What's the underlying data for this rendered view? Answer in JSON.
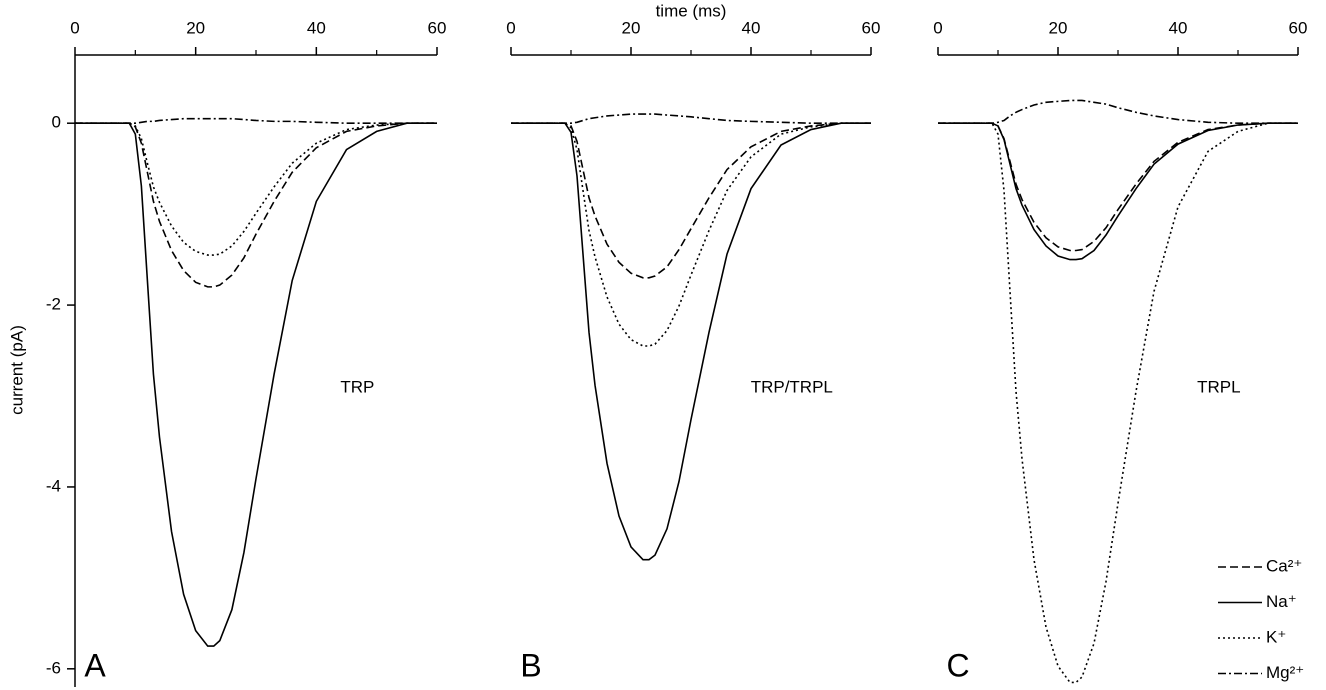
{
  "chart_data": [
    {
      "type": "line",
      "x_label": null,
      "y_label": "current (pA)",
      "annotation": "TRP",
      "panel_label": "A",
      "x": [
        0,
        9,
        10,
        11,
        12,
        13,
        14,
        16,
        18,
        20,
        22,
        23,
        24,
        26,
        28,
        30,
        33,
        36,
        40,
        45,
        50,
        55,
        60
      ],
      "xlim": [
        0,
        60
      ],
      "xticks": [
        0,
        20,
        40,
        60
      ],
      "xminor": [
        10,
        30,
        50
      ],
      "ylim": [
        -6.2,
        0.75
      ],
      "yticks": [
        0,
        -2,
        -4,
        -6
      ],
      "series": [
        {
          "color": "#000000",
          "dash": "dashed",
          "values": [
            0,
            0,
            -0.04,
            -0.22,
            -0.54,
            -0.86,
            -1.08,
            -1.4,
            -1.62,
            -1.75,
            -1.8,
            -1.8,
            -1.78,
            -1.67,
            -1.48,
            -1.22,
            -0.86,
            -0.54,
            -0.27,
            -0.09,
            -0.03,
            0,
            0
          ]
        },
        {
          "color": "#000000",
          "dash": "solid",
          "values": [
            0,
            0,
            -0.12,
            -0.69,
            -1.73,
            -2.76,
            -3.45,
            -4.49,
            -5.18,
            -5.58,
            -5.75,
            -5.75,
            -5.69,
            -5.35,
            -4.72,
            -3.91,
            -2.76,
            -1.73,
            -0.86,
            -0.29,
            -0.09,
            0,
            0
          ]
        },
        {
          "color": "#000000",
          "dash": "dotted",
          "values": [
            0,
            0,
            -0.03,
            -0.17,
            -0.44,
            -0.7,
            -0.87,
            -1.13,
            -1.31,
            -1.41,
            -1.45,
            -1.45,
            -1.44,
            -1.35,
            -1.19,
            -0.99,
            -0.7,
            -0.44,
            -0.22,
            -0.07,
            -0.02,
            0,
            0
          ]
        },
        {
          "color": "#000000",
          "dash": "dashdot",
          "values": [
            0,
            0,
            0,
            0.01,
            0.02,
            0.02,
            0.03,
            0.04,
            0.05,
            0.05,
            0.05,
            0.05,
            0.05,
            0.05,
            0.04,
            0.03,
            0.02,
            0.02,
            0.01,
            0,
            0,
            0,
            0
          ]
        }
      ]
    },
    {
      "type": "line",
      "x_label": "time (ms)",
      "annotation": "TRP/TRPL",
      "panel_label": "B",
      "x": [
        0,
        9,
        10,
        11,
        12,
        13,
        14,
        16,
        18,
        20,
        22,
        23,
        24,
        26,
        28,
        30,
        33,
        36,
        40,
        45,
        50,
        55,
        60
      ],
      "xlim": [
        0,
        60
      ],
      "xticks": [
        0,
        20,
        40,
        60
      ],
      "xminor": [
        10,
        30,
        50
      ],
      "ylim": [
        -6.2,
        0.75
      ],
      "series": [
        {
          "color": "#000000",
          "dash": "dashed",
          "values": [
            0,
            0,
            -0.03,
            -0.2,
            -0.51,
            -0.82,
            -1.02,
            -1.33,
            -1.53,
            -1.65,
            -1.7,
            -1.7,
            -1.68,
            -1.58,
            -1.39,
            -1.16,
            -0.82,
            -0.51,
            -0.26,
            -0.09,
            -0.03,
            0,
            0
          ]
        },
        {
          "color": "#000000",
          "dash": "solid",
          "values": [
            0,
            0,
            -0.1,
            -0.58,
            -1.44,
            -2.3,
            -2.88,
            -3.74,
            -4.32,
            -4.66,
            -4.8,
            -4.8,
            -4.75,
            -4.46,
            -3.94,
            -3.26,
            -2.3,
            -1.44,
            -0.72,
            -0.24,
            -0.07,
            0,
            0
          ]
        },
        {
          "color": "#000000",
          "dash": "dotted",
          "values": [
            0,
            0,
            -0.05,
            -0.29,
            -0.74,
            -1.18,
            -1.47,
            -1.91,
            -2.21,
            -2.38,
            -2.45,
            -2.45,
            -2.43,
            -2.28,
            -2.01,
            -1.67,
            -1.18,
            -0.74,
            -0.37,
            -0.12,
            -0.04,
            0,
            0
          ]
        },
        {
          "color": "#000000",
          "dash": "dashdot",
          "values": [
            0,
            0,
            0,
            0.01,
            0.03,
            0.05,
            0.06,
            0.08,
            0.09,
            0.1,
            0.1,
            0.1,
            0.1,
            0.09,
            0.08,
            0.07,
            0.05,
            0.03,
            0.02,
            0.01,
            0,
            0,
            0
          ]
        }
      ]
    },
    {
      "type": "line",
      "annotation": "TRPL",
      "panel_label": "C",
      "legend": "lower right",
      "x": [
        0,
        9,
        10,
        11,
        12,
        13,
        14,
        16,
        18,
        20,
        22,
        23,
        24,
        26,
        28,
        30,
        33,
        36,
        40,
        45,
        50,
        55,
        60
      ],
      "xlim": [
        0,
        60
      ],
      "xticks": [
        0,
        20,
        40,
        60
      ],
      "xminor": [
        10,
        30,
        50
      ],
      "ylim": [
        -6.2,
        0.75
      ],
      "series": [
        {
          "name": "Ca²⁺",
          "color": "#000000",
          "dash": "dashed",
          "values": [
            0,
            0,
            -0.03,
            -0.17,
            -0.42,
            -0.67,
            -0.84,
            -1.09,
            -1.26,
            -1.36,
            -1.4,
            -1.4,
            -1.39,
            -1.3,
            -1.15,
            -0.95,
            -0.67,
            -0.42,
            -0.21,
            -0.07,
            -0.02,
            0,
            0
          ]
        },
        {
          "name": "Na⁺",
          "color": "#000000",
          "dash": "solid",
          "values": [
            0,
            0,
            -0.03,
            -0.18,
            -0.45,
            -0.72,
            -0.9,
            -1.17,
            -1.35,
            -1.46,
            -1.5,
            -1.5,
            -1.49,
            -1.4,
            -1.23,
            -1.02,
            -0.72,
            -0.45,
            -0.23,
            -0.08,
            -0.02,
            0,
            0
          ]
        },
        {
          "name": "K⁺",
          "color": "#000000",
          "dash": "dotted",
          "values": [
            0,
            0,
            -0.12,
            -0.74,
            -1.85,
            -2.95,
            -3.69,
            -4.8,
            -5.54,
            -5.97,
            -6.15,
            -6.15,
            -6.09,
            -5.72,
            -5.04,
            -4.18,
            -2.95,
            -1.85,
            -0.92,
            -0.31,
            -0.09,
            0,
            0
          ]
        },
        {
          "name": "Mg²⁺",
          "color": "#000000",
          "dash": "dashdot",
          "values": [
            0,
            0,
            0.01,
            0.03,
            0.08,
            0.12,
            0.15,
            0.2,
            0.23,
            0.24,
            0.25,
            0.25,
            0.25,
            0.23,
            0.21,
            0.17,
            0.12,
            0.08,
            0.04,
            0.01,
            0,
            0,
            0
          ]
        }
      ]
    }
  ]
}
